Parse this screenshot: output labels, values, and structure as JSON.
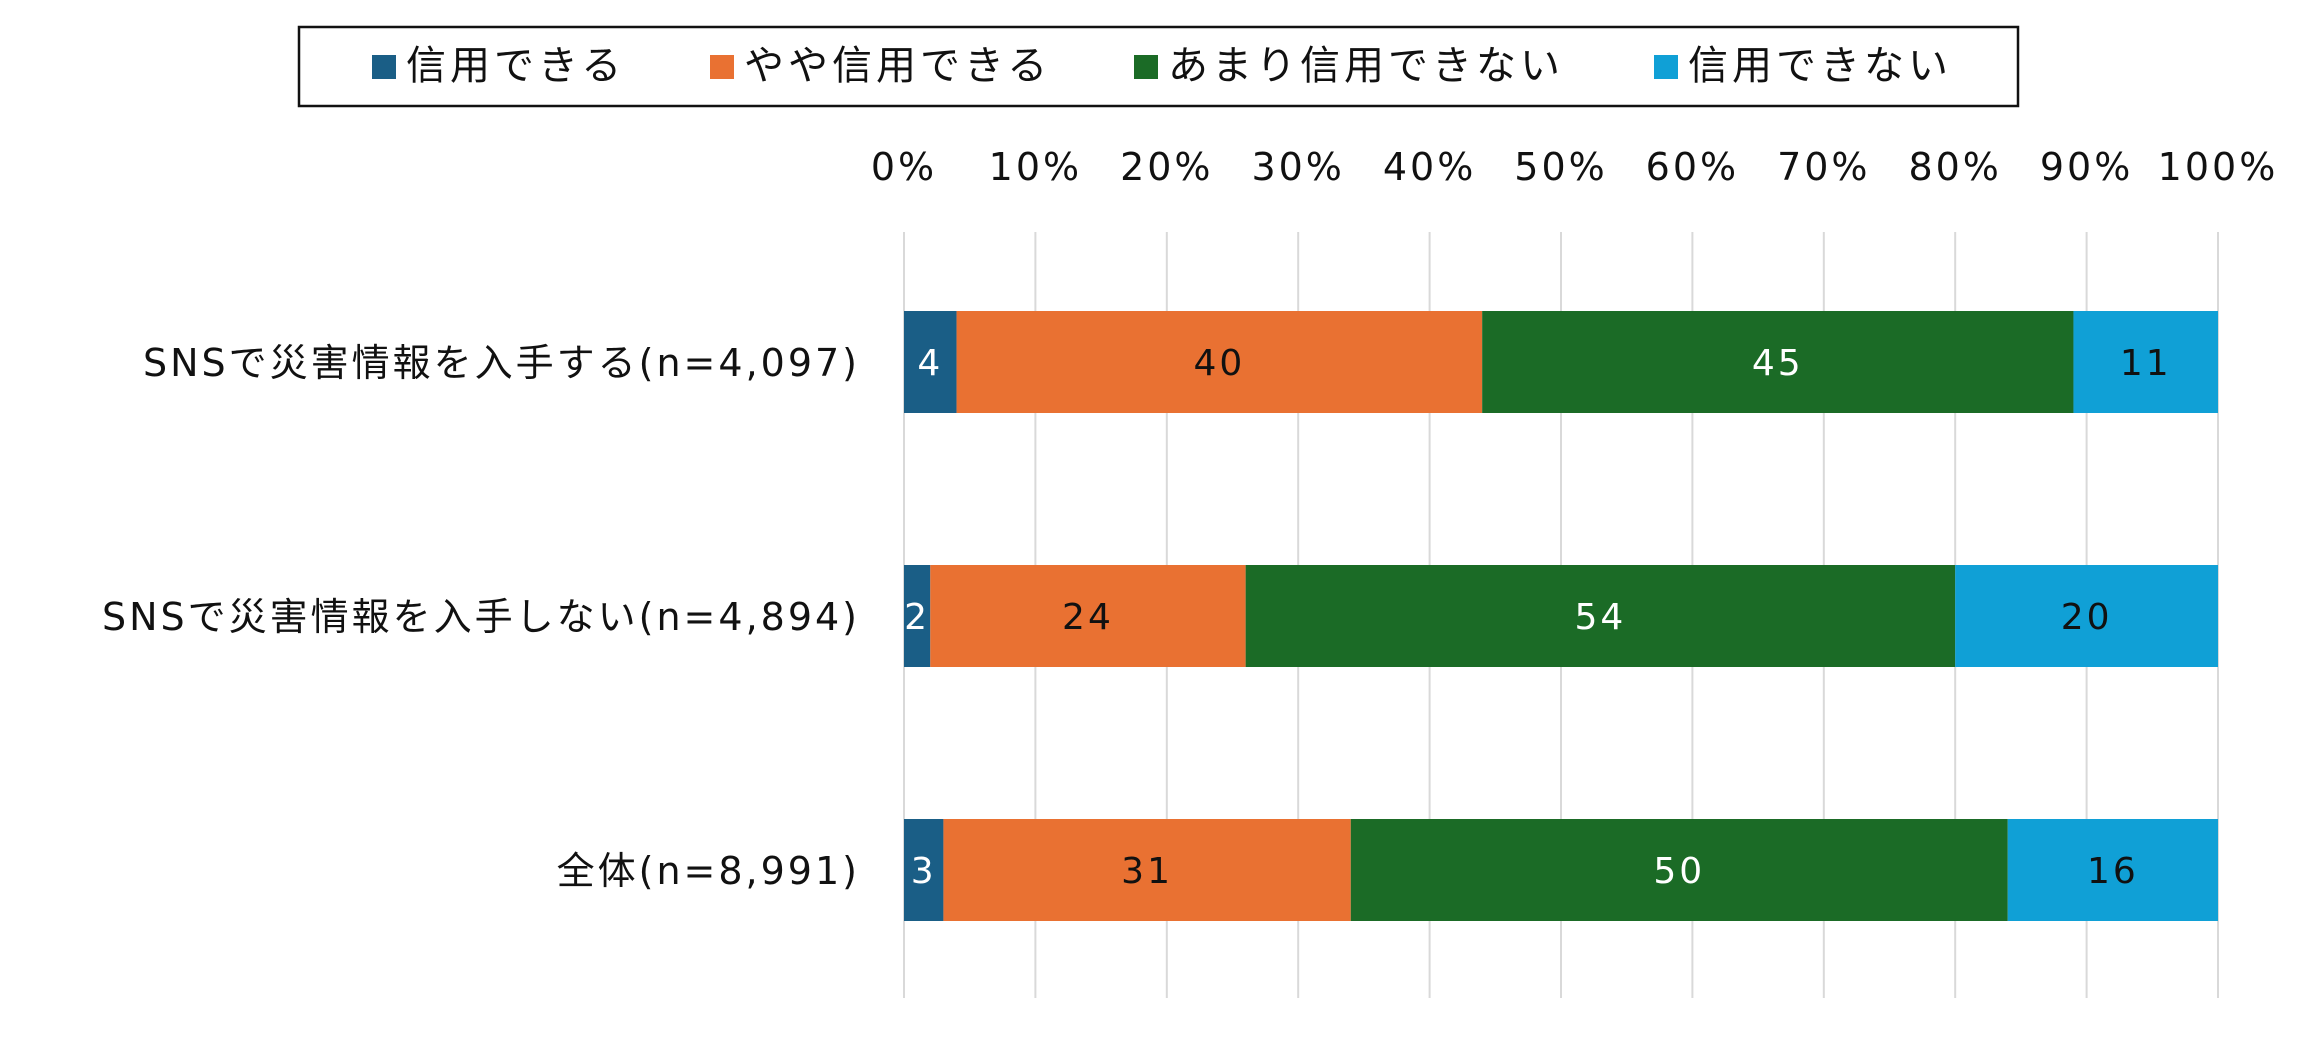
{
  "chart_data": {
    "type": "bar",
    "orientation": "horizontal",
    "stacked": true,
    "percent_stacked": true,
    "categories": [
      "SNSで災害情報を入手する(n=4,097)",
      "SNSで災害情報を入手しない(n=4,894)",
      "全体(n=8,991)"
    ],
    "series": [
      {
        "name": "信用できる",
        "color": "#1a5e86",
        "label_color": "#ffffff",
        "values": [
          4,
          2,
          3
        ]
      },
      {
        "name": "やや信用できる",
        "color": "#e97132",
        "label_color": "#111111",
        "values": [
          40,
          24,
          31
        ]
      },
      {
        "name": "あまり信用できない",
        "color": "#1b6b26",
        "label_color": "#ffffff",
        "values": [
          45,
          54,
          50
        ]
      },
      {
        "name": "信用できない",
        "color": "#10a0d6",
        "label_color": "#111111",
        "values": [
          11,
          20,
          16
        ]
      }
    ],
    "x_ticks": [
      "0%",
      "10%",
      "20%",
      "30%",
      "40%",
      "50%",
      "60%",
      "70%",
      "80%",
      "90%",
      "100%"
    ],
    "xlim": [
      0,
      100
    ],
    "axis_position": "top",
    "grid": true,
    "legend_position": "top"
  }
}
